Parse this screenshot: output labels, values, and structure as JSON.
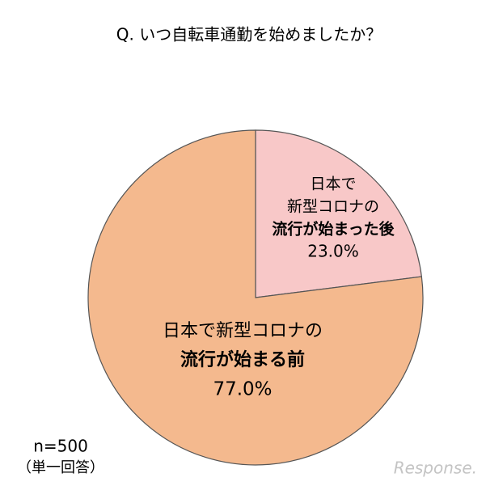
{
  "chart_data": {
    "type": "pie",
    "title": "Q. いつ自転車通勤を始めましたか？",
    "categories": [
      [
        "日本で",
        "新型コロナの",
        "流行が始まった後"
      ],
      [
        "日本で新型コロナの",
        "流行が始まる前"
      ]
    ],
    "values": [
      23.0,
      77.0
    ],
    "value_labels": [
      "23.0%",
      "77.0%"
    ],
    "colors": [
      "#f8c8c8",
      "#f4b98e"
    ],
    "start": "top",
    "direction": "clockwise",
    "bold_last_line": true,
    "notes": [
      "n=500",
      "（単一回答）"
    ],
    "watermark": "Response."
  }
}
